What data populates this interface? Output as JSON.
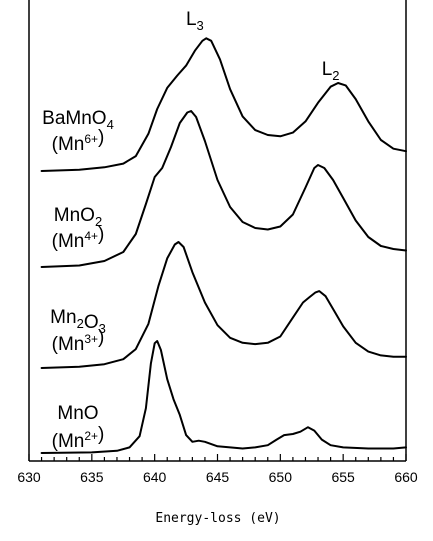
{
  "chart_data": {
    "type": "line",
    "xlabel": "Energy-loss (eV)",
    "ylabel": "",
    "xlim": [
      630,
      660
    ],
    "xticks": [
      "630",
      "635",
      "640",
      "645",
      "650",
      "655",
      "660"
    ],
    "grid": false,
    "legend": "none",
    "peak_labels": [
      {
        "base": "L",
        "sub": "3",
        "x": 643.2
      },
      {
        "base": "L",
        "sub": "2",
        "x": 654.0
      }
    ],
    "series": [
      {
        "label": [
          {
            "t": "BaMnO"
          },
          {
            "t": "4",
            "k": "sub"
          }
        ],
        "label2": [
          {
            "t": "(Mn"
          },
          {
            "t": "6+",
            "k": "sup"
          },
          {
            "t": ")"
          }
        ],
        "points": [
          [
            631,
            0.0
          ],
          [
            634,
            0.01
          ],
          [
            636,
            0.03
          ],
          [
            637.5,
            0.06
          ],
          [
            638.5,
            0.12
          ],
          [
            639.5,
            0.3
          ],
          [
            640.2,
            0.5
          ],
          [
            641,
            0.67
          ],
          [
            641.8,
            0.77
          ],
          [
            642.5,
            0.85
          ],
          [
            643.2,
            0.97
          ],
          [
            643.8,
            1.05
          ],
          [
            644.1,
            1.07
          ],
          [
            644.5,
            1.05
          ],
          [
            645.2,
            0.9
          ],
          [
            646,
            0.66
          ],
          [
            647,
            0.44
          ],
          [
            648,
            0.33
          ],
          [
            649,
            0.29
          ],
          [
            650,
            0.28
          ],
          [
            651,
            0.31
          ],
          [
            652,
            0.4
          ],
          [
            653,
            0.55
          ],
          [
            654,
            0.68
          ],
          [
            654.6,
            0.71
          ],
          [
            655.2,
            0.69
          ],
          [
            656,
            0.58
          ],
          [
            657,
            0.4
          ],
          [
            658,
            0.25
          ],
          [
            659,
            0.18
          ],
          [
            660,
            0.16
          ]
        ]
      },
      {
        "label": [
          {
            "t": "MnO"
          },
          {
            "t": "2",
            "k": "sub"
          }
        ],
        "label2": [
          {
            "t": "(Mn"
          },
          {
            "t": "4+",
            "k": "sup"
          },
          {
            "t": ")"
          }
        ],
        "points": [
          [
            631,
            0.0
          ],
          [
            634,
            0.01
          ],
          [
            636,
            0.04
          ],
          [
            637.5,
            0.1
          ],
          [
            638.5,
            0.22
          ],
          [
            639.3,
            0.42
          ],
          [
            640,
            0.6
          ],
          [
            640.6,
            0.66
          ],
          [
            641.3,
            0.8
          ],
          [
            642,
            0.96
          ],
          [
            642.6,
            1.03
          ],
          [
            642.9,
            1.04
          ],
          [
            643.3,
            1.0
          ],
          [
            644,
            0.84
          ],
          [
            645,
            0.58
          ],
          [
            646,
            0.4
          ],
          [
            647,
            0.3
          ],
          [
            648,
            0.26
          ],
          [
            649,
            0.25
          ],
          [
            650,
            0.27
          ],
          [
            651,
            0.35
          ],
          [
            652,
            0.53
          ],
          [
            652.7,
            0.66
          ],
          [
            653,
            0.68
          ],
          [
            653.5,
            0.66
          ],
          [
            654.2,
            0.58
          ],
          [
            655,
            0.46
          ],
          [
            656,
            0.31
          ],
          [
            657,
            0.2
          ],
          [
            658,
            0.14
          ],
          [
            659,
            0.12
          ],
          [
            660,
            0.11
          ]
        ]
      },
      {
        "label": [
          {
            "t": "Mn"
          },
          {
            "t": "2",
            "k": "sub"
          },
          {
            "t": "O"
          },
          {
            "t": "3",
            "k": "sub"
          }
        ],
        "label2": [
          {
            "t": "(Mn"
          },
          {
            "t": "3+",
            "k": "sup"
          },
          {
            "t": ")"
          }
        ],
        "points": [
          [
            631,
            0.0
          ],
          [
            634,
            0.01
          ],
          [
            636,
            0.03
          ],
          [
            637.5,
            0.07
          ],
          [
            638.5,
            0.15
          ],
          [
            639.5,
            0.35
          ],
          [
            640.3,
            0.65
          ],
          [
            641,
            0.87
          ],
          [
            641.6,
            0.98
          ],
          [
            641.9,
            1.0
          ],
          [
            642.3,
            0.96
          ],
          [
            643,
            0.76
          ],
          [
            644,
            0.52
          ],
          [
            645,
            0.34
          ],
          [
            646,
            0.24
          ],
          [
            647,
            0.2
          ],
          [
            648,
            0.19
          ],
          [
            649,
            0.2
          ],
          [
            650,
            0.25
          ],
          [
            651,
            0.4
          ],
          [
            651.8,
            0.52
          ],
          [
            652.3,
            0.56
          ],
          [
            652.8,
            0.6
          ],
          [
            653.1,
            0.61
          ],
          [
            653.6,
            0.57
          ],
          [
            654.3,
            0.45
          ],
          [
            655,
            0.33
          ],
          [
            656,
            0.2
          ],
          [
            657,
            0.13
          ],
          [
            658,
            0.1
          ],
          [
            659,
            0.09
          ],
          [
            660,
            0.09
          ]
        ]
      },
      {
        "label": [
          {
            "t": "MnO"
          }
        ],
        "label2": [
          {
            "t": "(Mn"
          },
          {
            "t": "2+",
            "k": "sup"
          },
          {
            "t": ")"
          }
        ],
        "points": [
          [
            631,
            0.0
          ],
          [
            635,
            0.005
          ],
          [
            637,
            0.02
          ],
          [
            638,
            0.05
          ],
          [
            638.8,
            0.15
          ],
          [
            639.3,
            0.4
          ],
          [
            639.7,
            0.8
          ],
          [
            640,
            0.98
          ],
          [
            640.2,
            1.0
          ],
          [
            640.5,
            0.92
          ],
          [
            641,
            0.66
          ],
          [
            641.5,
            0.48
          ],
          [
            642,
            0.34
          ],
          [
            642.5,
            0.16
          ],
          [
            643,
            0.1
          ],
          [
            643.5,
            0.11
          ],
          [
            644,
            0.1
          ],
          [
            645,
            0.06
          ],
          [
            646,
            0.05
          ],
          [
            647,
            0.04
          ],
          [
            648,
            0.05
          ],
          [
            649,
            0.07
          ],
          [
            649.7,
            0.12
          ],
          [
            650.3,
            0.16
          ],
          [
            651,
            0.17
          ],
          [
            651.6,
            0.19
          ],
          [
            652.2,
            0.23
          ],
          [
            652.7,
            0.2
          ],
          [
            653.3,
            0.12
          ],
          [
            654,
            0.07
          ],
          [
            655,
            0.05
          ],
          [
            657,
            0.04
          ],
          [
            659,
            0.04
          ],
          [
            660,
            0.05
          ]
        ]
      }
    ]
  }
}
